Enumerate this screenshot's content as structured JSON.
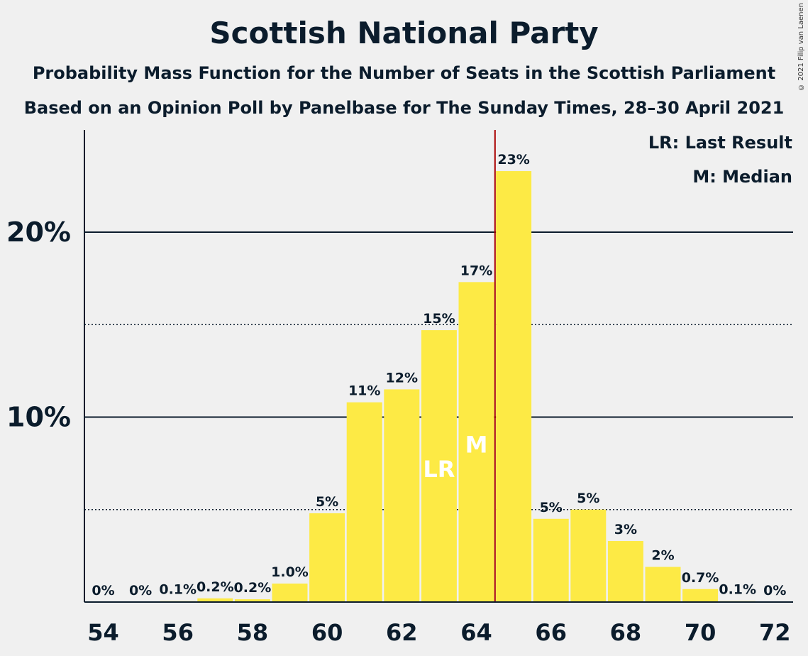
{
  "title": "Scottish National Party",
  "subtitle1": "Probability Mass Function for the Number of Seats in the Scottish Parliament",
  "subtitle2": "Based on an Opinion Poll by Panelbase for The Sunday Times, 28–30 April 2021",
  "copyright": "© 2021 Filip van Laenen",
  "legend": {
    "lr": "LR: Last Result",
    "m": "M: Median"
  },
  "colors": {
    "bar": "#fdea45",
    "median_line": "#aa0000",
    "text": "#0b1c2c"
  },
  "chart_data": {
    "type": "bar",
    "x": [
      54,
      55,
      56,
      57,
      58,
      59,
      60,
      61,
      62,
      63,
      64,
      65,
      66,
      67,
      68,
      69,
      70,
      71,
      72
    ],
    "values": [
      0,
      0,
      0.05,
      0.2,
      0.15,
      1.0,
      4.8,
      10.8,
      11.5,
      14.7,
      17.3,
      23.3,
      4.5,
      5.0,
      3.3,
      1.9,
      0.7,
      0.05,
      0
    ],
    "labels": [
      "0%",
      "0%",
      "0.1%",
      "0.2%",
      "0.2%",
      "1.0%",
      "5%",
      "11%",
      "12%",
      "15%",
      "17%",
      "23%",
      "5%",
      "5%",
      "3%",
      "2%",
      "0.7%",
      "0.1%",
      "0%"
    ],
    "xticks": [
      54,
      56,
      58,
      60,
      62,
      64,
      66,
      68,
      70,
      72
    ],
    "xtick_labels": [
      "54",
      "56",
      "58",
      "60",
      "62",
      "64",
      "66",
      "68",
      "70",
      "72"
    ],
    "yticks_major": [
      10,
      20
    ],
    "ytick_labels": [
      "10%",
      "20%"
    ],
    "yticks_minor": [
      5,
      15
    ],
    "ylim": [
      0,
      25.4
    ],
    "last_result": 63,
    "last_result_label": "LR",
    "median": 64,
    "median_label": "M",
    "median_line_after": 64,
    "legend_position": "top-right"
  }
}
